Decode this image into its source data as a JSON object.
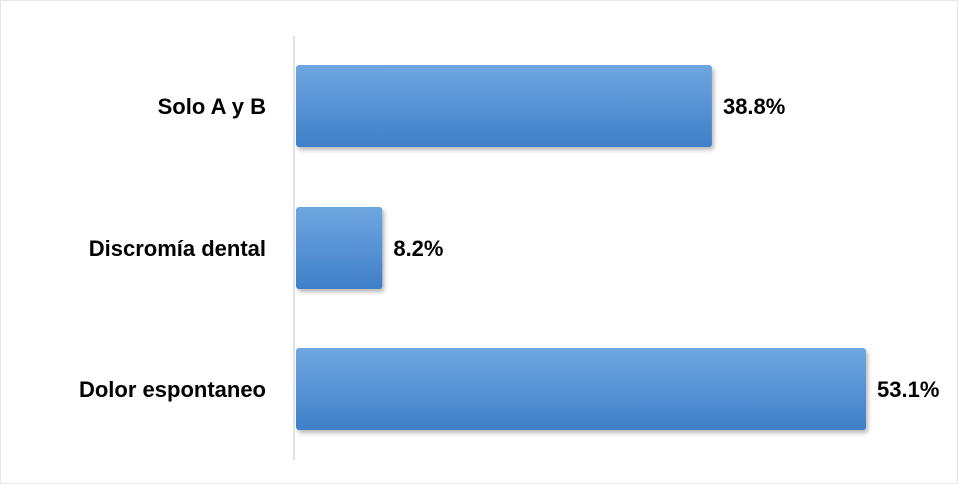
{
  "chart_data": {
    "type": "bar",
    "orientation": "horizontal",
    "categories": [
      "Solo A y B",
      "Discromía dental",
      "Dolor espontaneo"
    ],
    "values": [
      38.8,
      8.2,
      53.1
    ],
    "data_labels": [
      "38.8%",
      "8.2%",
      "53.1%"
    ],
    "unit": "%",
    "title": "",
    "xlabel": "",
    "ylabel": "",
    "xlim": [
      0,
      53.1
    ],
    "grid": false,
    "legend": "none",
    "colors": {
      "bar_top": "#6fa6e0",
      "bar_bottom": "#3f7fc8",
      "axis": "#d9d9d9"
    }
  }
}
